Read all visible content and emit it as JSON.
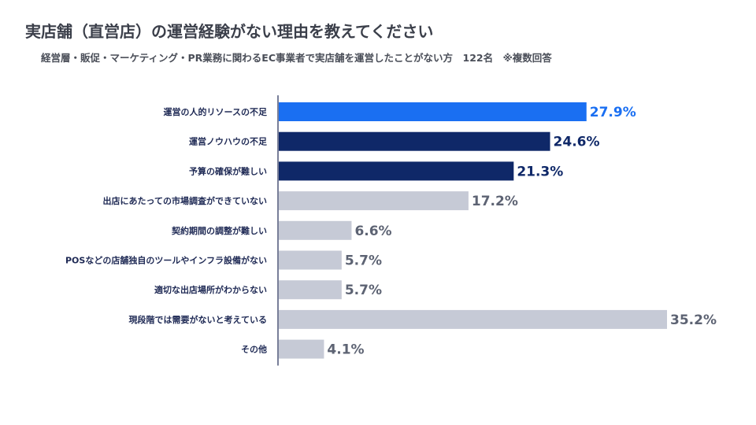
{
  "header": {
    "title": "実店舗（直営店）の運営経験がない理由を教えてください",
    "subtitle": "経営層・販促・マーケティング・PR業務に関わるEC事業者で実店舗を運営したことがない方　122名　※複数回答"
  },
  "colors": {
    "highlight": "#1a6ff2",
    "top": "#0f2868",
    "other": "#c6cad6",
    "highlight_label": "#1a6ff2",
    "top_label": "#0f2868",
    "other_label": "#5d6373",
    "axis": "#1f2a55"
  },
  "chart_data": {
    "type": "bar",
    "orientation": "horizontal",
    "title": "実店舗（直営店）の運営経験がない理由を教えてください",
    "unit": "%",
    "categories": [
      "運営の人的リソースの不足",
      "運営ノウハウの不足",
      "予算の確保が難しい",
      "出店にあたっての市場調査ができていない",
      "契約期間の調整が難しい",
      "POSなどの店舗独自のツールやインフラ設備がない",
      "適切な出店場所がわからない",
      "現段階では需要がないと考えている",
      "その他"
    ],
    "values": [
      27.9,
      24.6,
      21.3,
      17.2,
      6.6,
      5.7,
      5.7,
      35.2,
      4.1
    ],
    "value_labels": [
      "27.9%",
      "24.6%",
      "21.3%",
      "17.2%",
      "6.6%",
      "5.7%",
      "5.7%",
      "35.2%",
      "4.1%"
    ],
    "color_group": [
      "highlight",
      "top",
      "top",
      "other",
      "other",
      "other",
      "other",
      "other",
      "other"
    ],
    "xlim": [
      0,
      35.2
    ]
  }
}
